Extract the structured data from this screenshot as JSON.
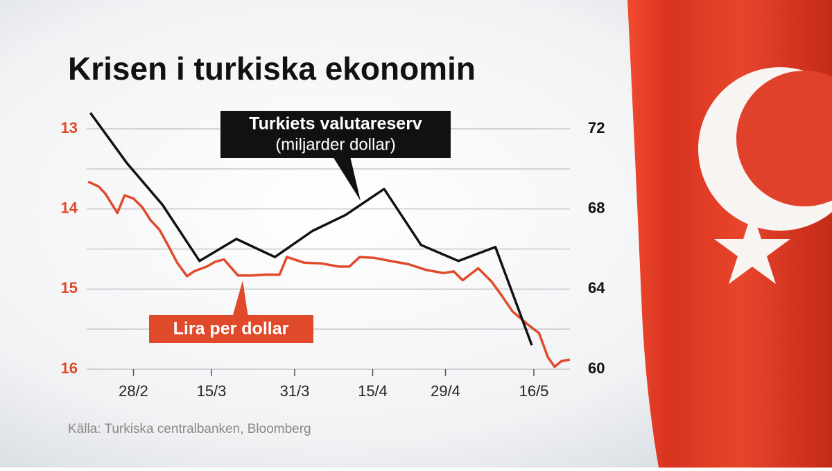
{
  "chart_data": {
    "type": "line",
    "title": "Krisen i turkiska ekonomin",
    "source": "Källa: Turkiska centralbanken, Bloomberg",
    "xlim": [
      50,
      144
    ],
    "xticks": [
      {
        "value": 59,
        "label": "28/2"
      },
      {
        "value": 74,
        "label": "15/3"
      },
      {
        "value": 90,
        "label": "31/3"
      },
      {
        "value": 105,
        "label": "15/4"
      },
      {
        "value": 119,
        "label": "29/4"
      },
      {
        "value": 136,
        "label": "16/5"
      }
    ],
    "ylim": [
      16,
      13
    ],
    "yticks": [
      13,
      14,
      15,
      16
    ],
    "minor_yticks": [
      13.5,
      14.5,
      15.5
    ],
    "y2lim": [
      60,
      72
    ],
    "y2ticks": [
      60,
      64,
      68,
      72
    ],
    "grid": true,
    "series": [
      {
        "name": "Lira per dollar",
        "color": "#e04a2a",
        "axis": "y",
        "x": [
          50.3,
          52.3,
          53.6,
          55.9,
          57.3,
          59.0,
          60.7,
          62.3,
          64.0,
          65.7,
          67.4,
          69.3,
          70.6,
          73.1,
          74.7,
          76.4,
          79.1,
          81.8,
          84.4,
          87.1,
          88.5,
          91.8,
          95.1,
          98.5,
          100.5,
          102.5,
          105.2,
          108.5,
          111.9,
          115.2,
          118.6,
          120.6,
          122.3,
          125.3,
          127.9,
          129.9,
          131.9,
          134.6,
          137.0,
          138.7,
          140.0,
          141.3,
          142.9
        ],
        "values": [
          13.66,
          13.72,
          13.81,
          14.05,
          13.83,
          13.87,
          13.98,
          14.14,
          14.26,
          14.46,
          14.67,
          14.84,
          14.78,
          14.72,
          14.66,
          14.63,
          14.83,
          14.83,
          14.82,
          14.82,
          14.6,
          14.67,
          14.68,
          14.72,
          14.72,
          14.6,
          14.61,
          14.65,
          14.69,
          14.76,
          14.8,
          14.78,
          14.89,
          14.74,
          14.91,
          15.09,
          15.28,
          15.43,
          15.55,
          15.85,
          15.97,
          15.9,
          15.88
        ]
      },
      {
        "name": "Turkiets valutareserv",
        "unit": "(miljarder dollar)",
        "color": "#111111",
        "axis": "y2",
        "x": [
          50.7,
          57.7,
          64.6,
          71.7,
          78.8,
          86.2,
          93.4,
          99.8,
          107.2,
          114.3,
          121.5,
          128.6,
          135.6
        ],
        "values": [
          72.8,
          70.3,
          68.2,
          65.4,
          66.5,
          65.6,
          66.9,
          67.7,
          69.0,
          66.2,
          65.4,
          66.1,
          61.2
        ]
      }
    ]
  }
}
